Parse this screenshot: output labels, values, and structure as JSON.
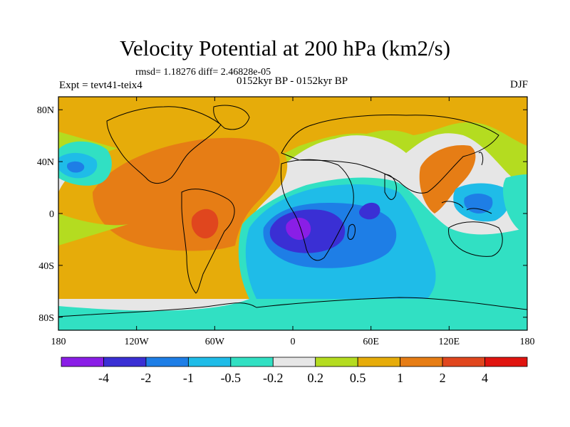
{
  "title": "Velocity Potential at 200 hPa (km2/s)",
  "rmsd_line": "rmsd= 1.18276 diff= 2.46828e-05",
  "subtitle": "0152kyr BP - 0152kyr BP",
  "experiment": "Expt = tevt41-teix4",
  "season": "DJF",
  "map": {
    "x_ticks": [
      {
        "lon": -180,
        "label": "180"
      },
      {
        "lon": -120,
        "label": "120W"
      },
      {
        "lon": -60,
        "label": "60W"
      },
      {
        "lon": 0,
        "label": "0"
      },
      {
        "lon": 60,
        "label": "60E"
      },
      {
        "lon": 120,
        "label": "120E"
      },
      {
        "lon": 180,
        "label": "180"
      }
    ],
    "y_ticks": [
      {
        "lat": 80,
        "label": "80N"
      },
      {
        "lat": 40,
        "label": "40N"
      },
      {
        "lat": 0,
        "label": "0"
      },
      {
        "lat": -40,
        "label": "40S"
      },
      {
        "lat": -80,
        "label": "80S"
      }
    ],
    "lon_range": [
      -180,
      180
    ],
    "lat_range": [
      -90,
      90
    ]
  },
  "colorbar": {
    "colors": [
      "#8a1ee6",
      "#3a2fd4",
      "#1e7ee6",
      "#1fbce8",
      "#31e0c3",
      "#e6e6e6",
      "#b4dc20",
      "#e6ac0a",
      "#e67d15",
      "#e0461e",
      "#e0140f"
    ],
    "labels": [
      "-4",
      "-2",
      "-1",
      "-0.5",
      "-0.2",
      "0.2",
      "0.5",
      "1",
      "2",
      "4"
    ]
  }
}
